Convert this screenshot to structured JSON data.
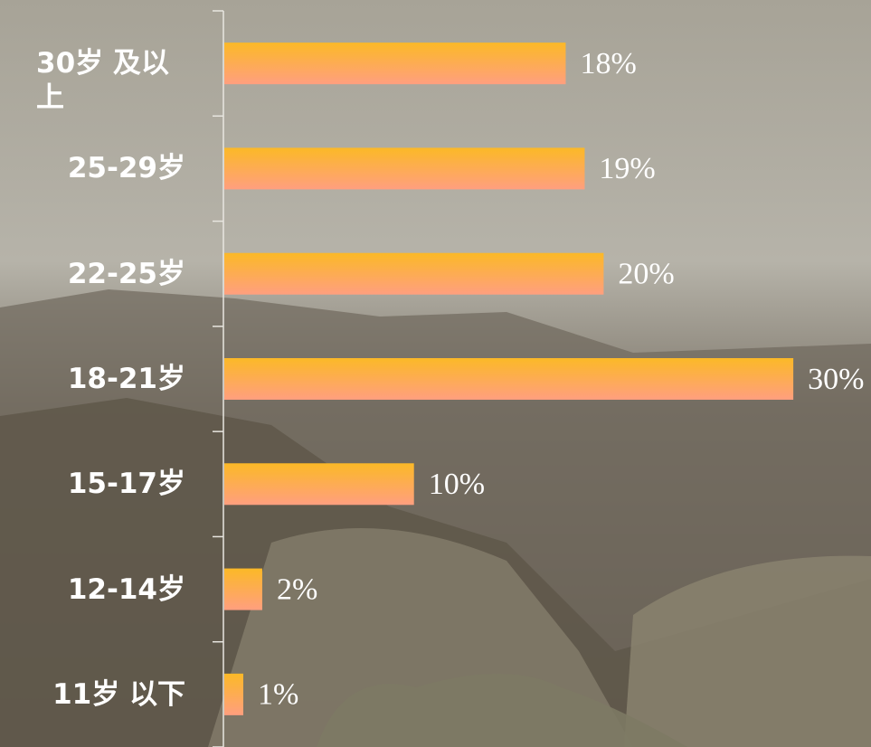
{
  "chart_data": {
    "type": "bar",
    "orientation": "horizontal",
    "categories": [
      "30岁 及以上",
      "25-29岁",
      "22-25岁",
      "18-21岁",
      "15-17岁",
      "12-14岁",
      "11岁 以下"
    ],
    "values": [
      18,
      19,
      20,
      30,
      10,
      2,
      1
    ],
    "value_labels": [
      "18%",
      "19%",
      "20%",
      "30%",
      "10%",
      "2%",
      "1%"
    ],
    "color": [
      "#fbb927",
      "#ff9f7f"
    ]
  }
}
